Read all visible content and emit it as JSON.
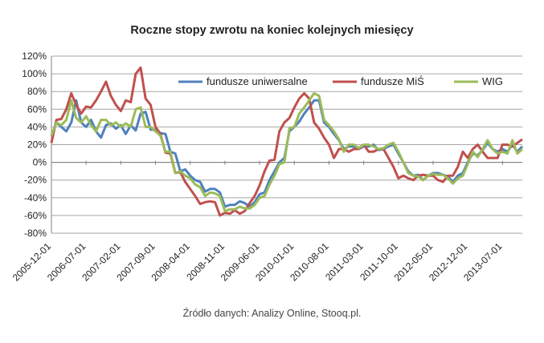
{
  "chart_data": {
    "type": "line",
    "title": "Roczne stopy zwrotu na koniec kolejnych miesięcy",
    "source": "Źródło danych: Analizy Online, Stooq.pl.",
    "xlabel": "",
    "ylabel": "",
    "ylim": [
      -80,
      120
    ],
    "y_ticks": [
      120,
      100,
      80,
      60,
      40,
      20,
      0,
      -20,
      -40,
      -60,
      -80
    ],
    "y_tick_labels": [
      "120%",
      "100%",
      "80%",
      "60%",
      "40%",
      "20%",
      "0%",
      "-20%",
      "-40%",
      "-60%",
      "-80%"
    ],
    "x_tick_labels": [
      "2005-12-01",
      "2006-07-01",
      "2007-02-01",
      "2007-09-01",
      "2008-04-01",
      "2008-11-01",
      "2009-06-01",
      "2010-01-01",
      "2010-08-01",
      "2011-03-01",
      "2011-10-01",
      "2012-05-01",
      "2012-12-01",
      "2013-07-01"
    ],
    "x_start": "2005-12-01",
    "x_end": "2013-07-01",
    "grid": true,
    "legend_position": "top-right",
    "series": [
      {
        "name": "fundusze uniwersalne",
        "color": "#4F81BD",
        "values": [
          30,
          45,
          40,
          35,
          45,
          70,
          45,
          40,
          48,
          35,
          28,
          42,
          44,
          38,
          42,
          32,
          42,
          36,
          55,
          57,
          37,
          37,
          33,
          32,
          12,
          10,
          -10,
          -8,
          -15,
          -20,
          -22,
          -33,
          -30,
          -30,
          -34,
          -50,
          -48,
          -48,
          -44,
          -46,
          -50,
          -45,
          -36,
          -34,
          -20,
          -10,
          0,
          5,
          35,
          40,
          46,
          55,
          62,
          70,
          70,
          45,
          40,
          32,
          25,
          15,
          18,
          18,
          15,
          18,
          18,
          20,
          14,
          15,
          18,
          20,
          10,
          0,
          -10,
          -15,
          -14,
          -20,
          -15,
          -12,
          -12,
          -14,
          -16,
          -22,
          -15,
          -12,
          0,
          10,
          8,
          14,
          22,
          15,
          12,
          15,
          12,
          20,
          12,
          18
        ]
      },
      {
        "name": "fundusze MiŚ",
        "color": "#C0504D",
        "values": [
          22,
          48,
          49,
          60,
          78,
          65,
          55,
          63,
          62,
          70,
          80,
          91,
          75,
          65,
          58,
          70,
          68,
          100,
          107,
          72,
          65,
          40,
          32,
          11,
          10,
          -12,
          -11,
          -22,
          -30,
          -38,
          -47,
          -45,
          -44,
          -45,
          -60,
          -57,
          -58,
          -54,
          -58,
          -55,
          -46,
          -38,
          -26,
          -10,
          2,
          3,
          35,
          45,
          50,
          62,
          72,
          78,
          72,
          45,
          38,
          28,
          20,
          5,
          15,
          15,
          12,
          15,
          15,
          20,
          12,
          12,
          15,
          15,
          5,
          -5,
          -18,
          -15,
          -18,
          -20,
          -15,
          -14,
          -15,
          -15,
          -20,
          -22,
          -15,
          -15,
          -5,
          12,
          5,
          15,
          20,
          12,
          5,
          5,
          5,
          20,
          20,
          18,
          22,
          26
        ]
      },
      {
        "name": "WIG",
        "color": "#9BBB59",
        "values": [
          30,
          45,
          42,
          48,
          70,
          50,
          45,
          52,
          42,
          35,
          48,
          48,
          42,
          45,
          40,
          44,
          40,
          60,
          62,
          40,
          40,
          35,
          30,
          12,
          12,
          -12,
          -10,
          -15,
          -18,
          -25,
          -28,
          -38,
          -34,
          -35,
          -38,
          -55,
          -53,
          -53,
          -50,
          -52,
          -52,
          -48,
          -40,
          -38,
          -25,
          -15,
          -2,
          0,
          38,
          40,
          55,
          62,
          70,
          78,
          75,
          48,
          42,
          35,
          26,
          12,
          20,
          20,
          16,
          20,
          20,
          18,
          15,
          16,
          20,
          22,
          12,
          0,
          -12,
          -15,
          -16,
          -20,
          -15,
          -13,
          -14,
          -14,
          -18,
          -24,
          -18,
          -15,
          -2,
          12,
          6,
          15,
          25,
          15,
          10,
          12,
          10,
          25,
          10,
          15
        ]
      }
    ]
  }
}
